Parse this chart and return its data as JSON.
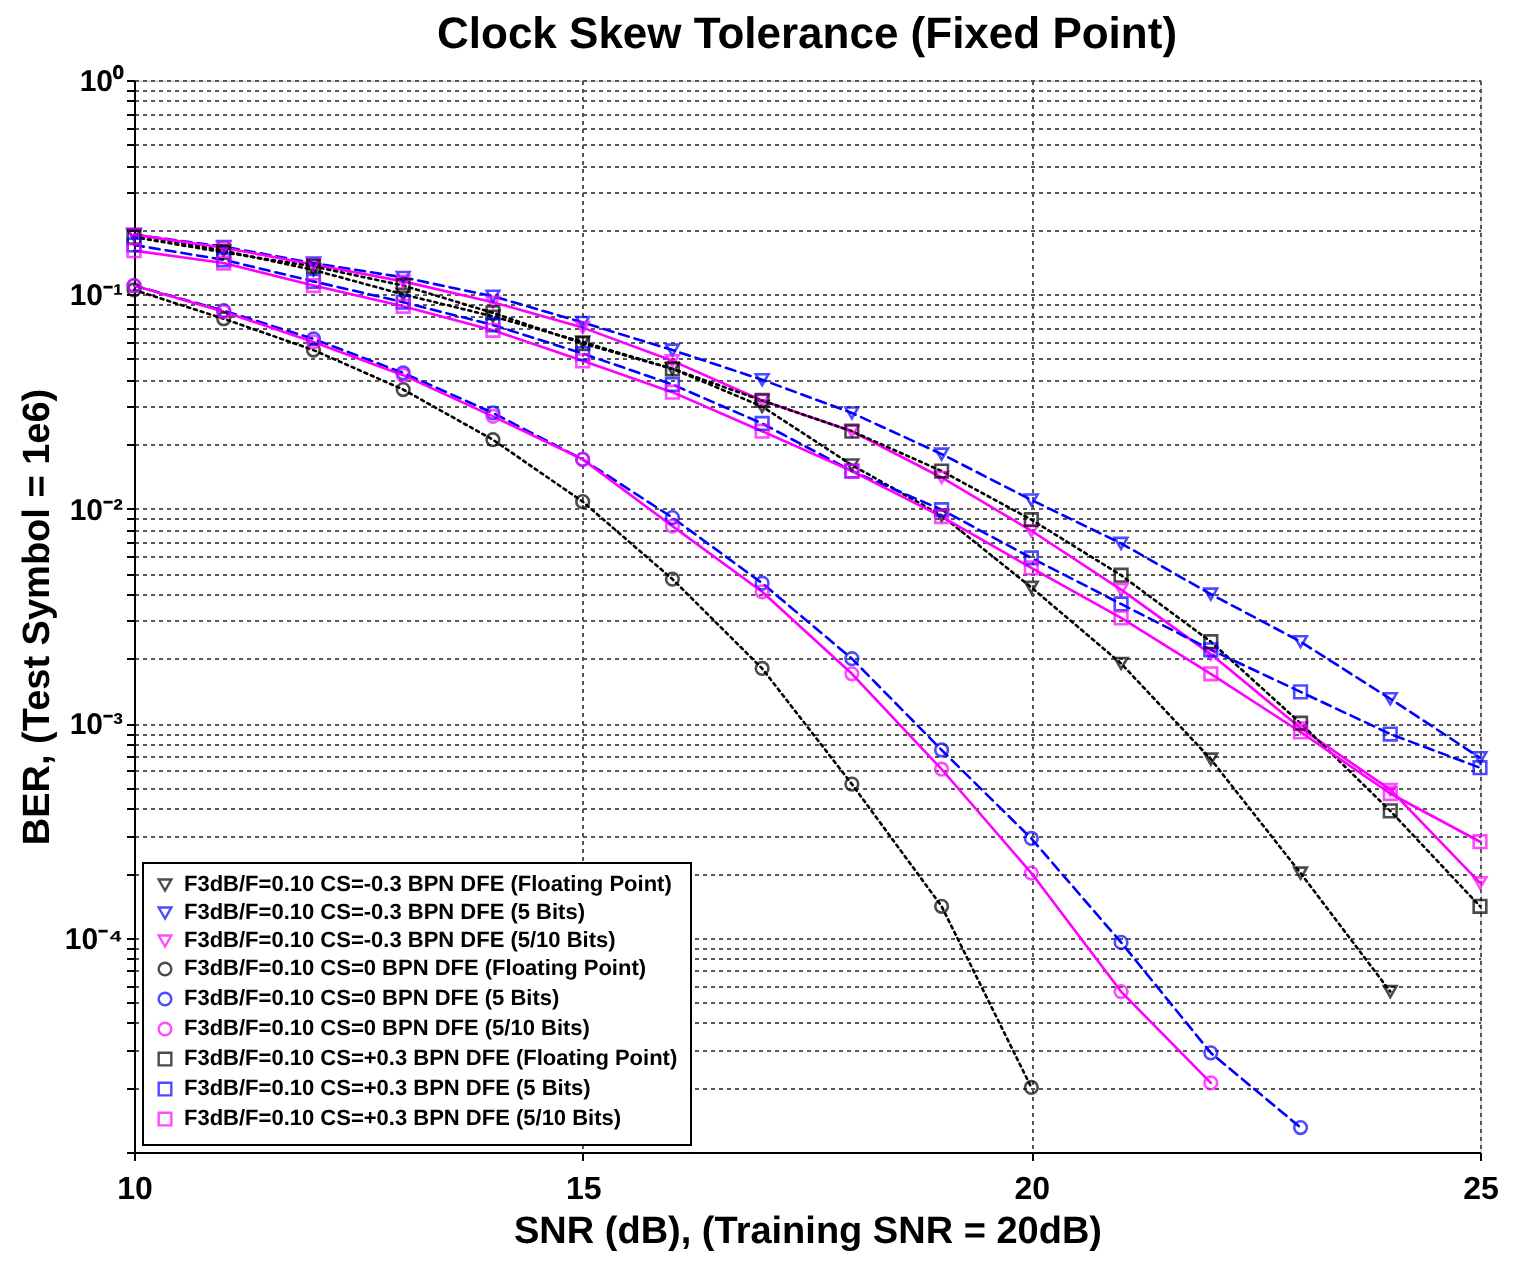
{
  "chart_data": {
    "type": "line",
    "title": "Clock Skew Tolerance (Fixed Point)",
    "xlabel": "SNR (dB), (Training SNR = 20dB)",
    "ylabel": "BER, (Test Symbol = 1e6)",
    "x": [
      10,
      11,
      12,
      13,
      14,
      15,
      16,
      17,
      18,
      19,
      20,
      21,
      22,
      23,
      24,
      25
    ],
    "xlim": [
      10,
      25
    ],
    "xticks": [
      10,
      15,
      20,
      25
    ],
    "ylim": [
      1e-05,
      1
    ],
    "log": "y",
    "grid": true,
    "legend": "bottom left",
    "yticks": [
      {
        "value": 1e-05,
        "label": null
      },
      {
        "value": 2e-05,
        "label": null
      },
      {
        "value": 3e-05,
        "label": null
      },
      {
        "value": 4e-05,
        "label": null
      },
      {
        "value": 5e-05,
        "label": null
      },
      {
        "value": 6e-05,
        "label": null
      },
      {
        "value": 7e-05,
        "label": null
      },
      {
        "value": 8e-05,
        "label": null
      },
      {
        "value": 9e-05,
        "label": null
      },
      {
        "value": 0.0001,
        "label": "10⁻⁴"
      },
      {
        "value": 0.0002,
        "label": null
      },
      {
        "value": 0.0003,
        "label": null
      },
      {
        "value": 0.0004,
        "label": null
      },
      {
        "value": 0.0005,
        "label": null
      },
      {
        "value": 0.0006,
        "label": null
      },
      {
        "value": 0.0007,
        "label": null
      },
      {
        "value": 0.0008,
        "label": null
      },
      {
        "value": 0.0009,
        "label": null
      },
      {
        "value": 0.001,
        "label": "10⁻³"
      },
      {
        "value": 0.002,
        "label": null
      },
      {
        "value": 0.003,
        "label": null
      },
      {
        "value": 0.004,
        "label": null
      },
      {
        "value": 0.005,
        "label": null
      },
      {
        "value": 0.006,
        "label": null
      },
      {
        "value": 0.007,
        "label": null
      },
      {
        "value": 0.008,
        "label": null
      },
      {
        "value": 0.009,
        "label": null
      },
      {
        "value": 0.01,
        "label": "10⁻²"
      },
      {
        "value": 0.02,
        "label": null
      },
      {
        "value": 0.03,
        "label": null
      },
      {
        "value": 0.04,
        "label": null
      },
      {
        "value": 0.05,
        "label": null
      },
      {
        "value": 0.06,
        "label": null
      },
      {
        "value": 0.07,
        "label": null
      },
      {
        "value": 0.08,
        "label": null
      },
      {
        "value": 0.09,
        "label": null
      },
      {
        "value": 0.1,
        "label": "10⁻¹"
      },
      {
        "value": 0.2,
        "label": null
      },
      {
        "value": 0.3,
        "label": null
      },
      {
        "value": 0.4,
        "label": null
      },
      {
        "value": 0.5,
        "label": null
      },
      {
        "value": 0.6,
        "label": null
      },
      {
        "value": 0.7,
        "label": null
      },
      {
        "value": 0.8,
        "label": null
      },
      {
        "value": 0.9,
        "label": null
      },
      {
        "value": 1,
        "label": "10⁰"
      }
    ],
    "series": [
      {
        "name": "F3dB/F=0.10 CS=-0.3 BPN DFE (Floating Point)",
        "color": "#000000",
        "marker": "triangle",
        "line_style": "dotted",
        "values": [
          0.19,
          0.16,
          0.13,
          0.1,
          0.079,
          0.06,
          0.045,
          0.03,
          0.016,
          0.0093,
          0.0043,
          0.0019,
          0.00068,
          0.0002,
          5.6e-05,
          null
        ]
      },
      {
        "name": "F3dB/F=0.10 CS=-0.3 BPN DFE (5 Bits)",
        "color": "#0000ff",
        "marker": "triangle",
        "line_style": "dashed",
        "values": [
          0.19,
          0.167,
          0.14,
          0.12,
          0.098,
          0.074,
          0.055,
          0.04,
          0.028,
          0.018,
          0.011,
          0.0069,
          0.004,
          0.0024,
          0.0013,
          0.00069
        ]
      },
      {
        "name": "F3dB/F=0.10 CS=-0.3 BPN DFE (5/10 Bits)",
        "color": "#ff00ff",
        "marker": "triangle",
        "line_style": "solid",
        "values": [
          0.19,
          0.165,
          0.138,
          0.115,
          0.092,
          0.07,
          0.049,
          0.032,
          0.023,
          0.014,
          0.0079,
          0.0042,
          0.0021,
          0.00095,
          0.00049,
          0.00018
        ]
      },
      {
        "name": "F3dB/F=0.10 CS=0 BPN DFE (Floating Point)",
        "color": "#000000",
        "marker": "circle",
        "line_style": "dotted",
        "values": [
          0.105,
          0.077,
          0.055,
          0.036,
          0.021,
          0.0108,
          0.0047,
          0.0018,
          0.00052,
          0.00014,
          2e-05,
          null,
          null,
          null,
          null,
          null
        ]
      },
      {
        "name": "F3dB/F=0.10 CS=0 BPN DFE (5 Bits)",
        "color": "#0000ff",
        "marker": "circle",
        "line_style": "dashed",
        "values": [
          0.11,
          0.084,
          0.062,
          0.043,
          0.028,
          0.017,
          0.0091,
          0.0045,
          0.002,
          0.00075,
          0.00029,
          9.5e-05,
          2.9e-05,
          1.3e-05,
          null,
          null
        ]
      },
      {
        "name": "F3dB/F=0.10 CS=0 BPN DFE (5/10 Bits)",
        "color": "#ff00ff",
        "marker": "circle",
        "line_style": "solid",
        "values": [
          0.11,
          0.083,
          0.06,
          0.042,
          0.027,
          0.017,
          0.0083,
          0.0041,
          0.0017,
          0.00061,
          0.0002,
          5.6e-05,
          2.1e-05,
          null,
          null,
          null
        ]
      },
      {
        "name": "F3dB/F=0.10 CS=+0.3 BPN DFE (Floating Point)",
        "color": "#000000",
        "marker": "square",
        "line_style": "dotted",
        "values": [
          0.185,
          0.157,
          0.135,
          0.11,
          0.082,
          0.059,
          0.045,
          0.032,
          0.023,
          0.015,
          0.0089,
          0.0049,
          0.0024,
          0.001,
          0.00039,
          0.00014
        ]
      },
      {
        "name": "F3dB/F=0.10 CS=+0.3 BPN DFE (5 Bits)",
        "color": "#0000ff",
        "marker": "square",
        "line_style": "dashed",
        "values": [
          0.17,
          0.145,
          0.115,
          0.092,
          0.072,
          0.053,
          0.038,
          0.025,
          0.015,
          0.0099,
          0.0059,
          0.0036,
          0.0022,
          0.0014,
          0.00089,
          0.00062
        ]
      },
      {
        "name": "F3dB/F=0.10 CS=+0.3 BPN DFE (5/10 Bits)",
        "color": "#ff00ff",
        "marker": "square",
        "line_style": "solid",
        "values": [
          0.16,
          0.14,
          0.11,
          0.088,
          0.068,
          0.049,
          0.035,
          0.023,
          0.015,
          0.0092,
          0.0053,
          0.0031,
          0.0017,
          0.00091,
          0.00047,
          0.00028
        ]
      }
    ]
  }
}
